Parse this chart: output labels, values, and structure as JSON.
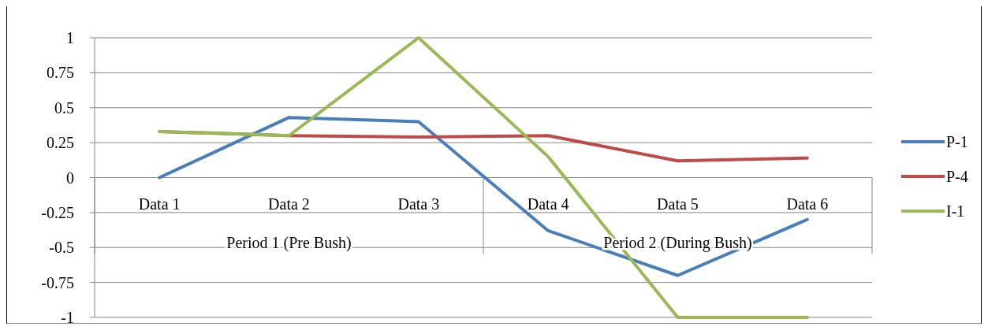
{
  "chart_data": {
    "type": "line",
    "categories": [
      "Data 1",
      "Data 2",
      "Data 3",
      "Data 4",
      "Data 5",
      "Data 6"
    ],
    "series": [
      {
        "name": "P-1",
        "color": "#4a7ebb",
        "values": [
          0,
          0.43,
          0.4,
          -0.38,
          -0.7,
          -0.3
        ]
      },
      {
        "name": "P-4",
        "color": "#be4b48",
        "values": [
          0.33,
          0.3,
          0.29,
          0.3,
          0.12,
          0.14
        ]
      },
      {
        "name": "I-1",
        "color": "#98b954",
        "values": [
          0.33,
          0.3,
          1,
          0.15,
          -1,
          -1
        ]
      }
    ],
    "ylim": [
      -1,
      1
    ],
    "yticks": [
      -1,
      -0.75,
      -0.5,
      -0.25,
      0,
      0.25,
      0.5,
      0.75,
      1
    ],
    "grid": "y",
    "legend": "right",
    "marker": "none",
    "line_style": "solid",
    "annotations": [
      "Period 1 (Pre Bush)",
      "Period 2 (During Bush)"
    ]
  }
}
